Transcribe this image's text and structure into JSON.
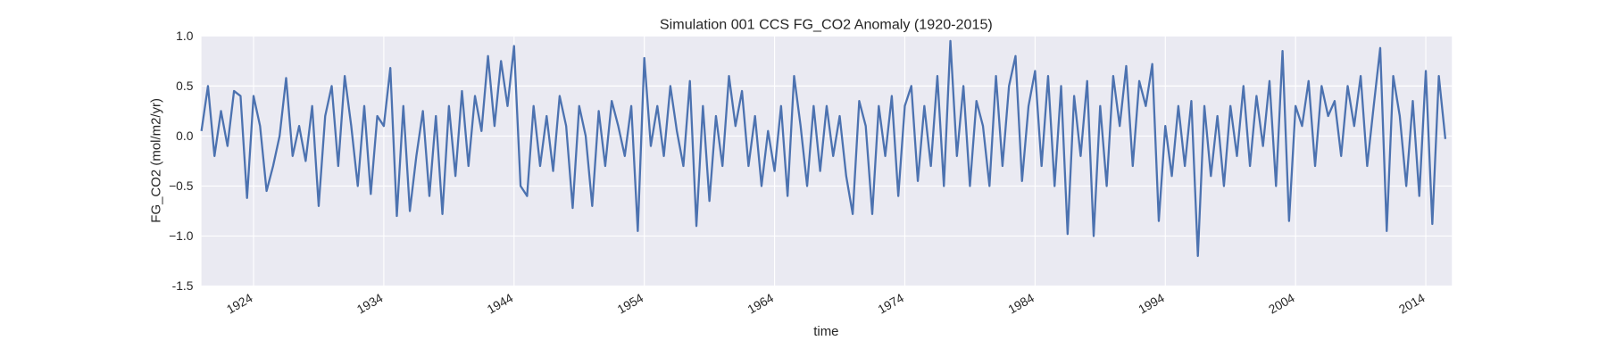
{
  "chart_data": {
    "type": "line",
    "title": "Simulation 001 CCS FG_CO2 Anomaly (1920-2015)",
    "x_label": "time",
    "y_label": "FG_CO2 (mol/m2/yr)",
    "xlim": [
      1920,
      2016
    ],
    "ylim": [
      -1.5,
      1.0
    ],
    "xticks": [
      1924,
      1934,
      1944,
      1954,
      1964,
      1974,
      1984,
      1994,
      2004,
      2014
    ],
    "yticks": [
      -1.5,
      {
        "value": -1.0,
        "label": "−1.0"
      },
      {
        "value": -0.5,
        "label": "−0.5"
      },
      {
        "value": 0.0,
        "label": "0.0"
      },
      0.5,
      {
        "value": 1.0,
        "label": "1.0"
      }
    ],
    "grid": true,
    "x": [
      1920,
      1920.5,
      1921,
      1921.5,
      1922,
      1922.5,
      1923,
      1923.5,
      1924,
      1924.5,
      1925,
      1925.5,
      1926,
      1926.5,
      1927,
      1927.5,
      1928,
      1928.5,
      1929,
      1929.5,
      1930,
      1930.5,
      1931,
      1931.5,
      1932,
      1932.5,
      1933,
      1933.5,
      1934,
      1934.5,
      1935,
      1935.5,
      1936,
      1936.5,
      1937,
      1937.5,
      1938,
      1938.5,
      1939,
      1939.5,
      1940,
      1940.5,
      1941,
      1941.5,
      1942,
      1942.5,
      1943,
      1943.5,
      1944,
      1944.5,
      1945,
      1945.5,
      1946,
      1946.5,
      1947,
      1947.5,
      1948,
      1948.5,
      1949,
      1949.5,
      1950,
      1950.5,
      1951,
      1951.5,
      1952,
      1952.5,
      1953,
      1953.5,
      1954,
      1954.5,
      1955,
      1955.5,
      1956,
      1956.5,
      1957,
      1957.5,
      1958,
      1958.5,
      1959,
      1959.5,
      1960,
      1960.5,
      1961,
      1961.5,
      1962,
      1962.5,
      1963,
      1963.5,
      1964,
      1964.5,
      1965,
      1965.5,
      1966,
      1966.5,
      1967,
      1967.5,
      1968,
      1968.5,
      1969,
      1969.5,
      1970,
      1970.5,
      1971,
      1971.5,
      1972,
      1972.5,
      1973,
      1973.5,
      1974,
      1974.5,
      1975,
      1975.5,
      1976,
      1976.5,
      1977,
      1977.5,
      1978,
      1978.5,
      1979,
      1979.5,
      1980,
      1980.5,
      1981,
      1981.5,
      1982,
      1982.5,
      1983,
      1983.5,
      1984,
      1984.5,
      1985,
      1985.5,
      1986,
      1986.5,
      1987,
      1987.5,
      1988,
      1988.5,
      1989,
      1989.5,
      1990,
      1990.5,
      1991,
      1991.5,
      1992,
      1992.5,
      1993,
      1993.5,
      1994,
      1994.5,
      1995,
      1995.5,
      1996,
      1996.5,
      1997,
      1997.5,
      1998,
      1998.5,
      1999,
      1999.5,
      2000,
      2000.5,
      2001,
      2001.5,
      2002,
      2002.5,
      2003,
      2003.5,
      2004,
      2004.5,
      2005,
      2005.5,
      2006,
      2006.5,
      2007,
      2007.5,
      2008,
      2008.5,
      2009,
      2009.5,
      2010,
      2010.5,
      2011,
      2011.5,
      2012,
      2012.5,
      2013,
      2013.5,
      2014,
      2014.5,
      2015,
      2015.5
    ],
    "series": [
      {
        "color": "#4c72b0",
        "values": [
          0.05,
          0.5,
          -0.2,
          0.25,
          -0.1,
          0.45,
          0.4,
          -0.62,
          0.4,
          0.1,
          -0.55,
          -0.3,
          0.0,
          0.58,
          -0.2,
          0.1,
          -0.25,
          0.3,
          -0.7,
          0.2,
          0.5,
          -0.3,
          0.6,
          0.1,
          -0.5,
          0.3,
          -0.58,
          0.2,
          0.1,
          0.68,
          -0.8,
          0.3,
          -0.75,
          -0.2,
          0.25,
          -0.6,
          0.2,
          -0.78,
          0.3,
          -0.4,
          0.45,
          -0.3,
          0.4,
          0.05,
          0.8,
          0.1,
          0.75,
          0.3,
          0.9,
          -0.5,
          -0.6,
          0.3,
          -0.3,
          0.2,
          -0.35,
          0.4,
          0.1,
          -0.72,
          0.3,
          0.0,
          -0.7,
          0.25,
          -0.3,
          0.35,
          0.1,
          -0.2,
          0.3,
          -0.95,
          0.78,
          -0.1,
          0.3,
          -0.2,
          0.5,
          0.05,
          -0.3,
          0.55,
          -0.9,
          0.3,
          -0.65,
          0.2,
          -0.3,
          0.6,
          0.1,
          0.45,
          -0.3,
          0.2,
          -0.5,
          0.05,
          -0.35,
          0.3,
          -0.6,
          0.6,
          0.1,
          -0.5,
          0.3,
          -0.35,
          0.3,
          -0.2,
          0.2,
          -0.4,
          -0.78,
          0.35,
          0.1,
          -0.78,
          0.3,
          -0.2,
          0.4,
          -0.6,
          0.3,
          0.5,
          -0.45,
          0.3,
          -0.3,
          0.6,
          -0.5,
          0.95,
          -0.2,
          0.5,
          -0.5,
          0.35,
          0.1,
          -0.5,
          0.6,
          -0.3,
          0.5,
          0.8,
          -0.45,
          0.3,
          0.65,
          -0.3,
          0.6,
          -0.5,
          0.5,
          -0.98,
          0.4,
          -0.2,
          0.55,
          -1.0,
          0.3,
          -0.5,
          0.6,
          0.1,
          0.7,
          -0.3,
          0.55,
          0.3,
          0.72,
          -0.85,
          0.1,
          -0.4,
          0.3,
          -0.3,
          0.35,
          -1.2,
          0.3,
          -0.4,
          0.2,
          -0.5,
          0.3,
          -0.2,
          0.5,
          -0.3,
          0.4,
          -0.1,
          0.55,
          -0.5,
          0.85,
          -0.85,
          0.3,
          0.1,
          0.55,
          -0.3,
          0.5,
          0.2,
          0.35,
          -0.2,
          0.5,
          0.1,
          0.6,
          -0.3,
          0.3,
          0.88,
          -0.95,
          0.6,
          0.2,
          -0.5,
          0.35,
          -0.6,
          0.65,
          -0.88,
          0.6,
          -0.03
        ]
      }
    ]
  }
}
